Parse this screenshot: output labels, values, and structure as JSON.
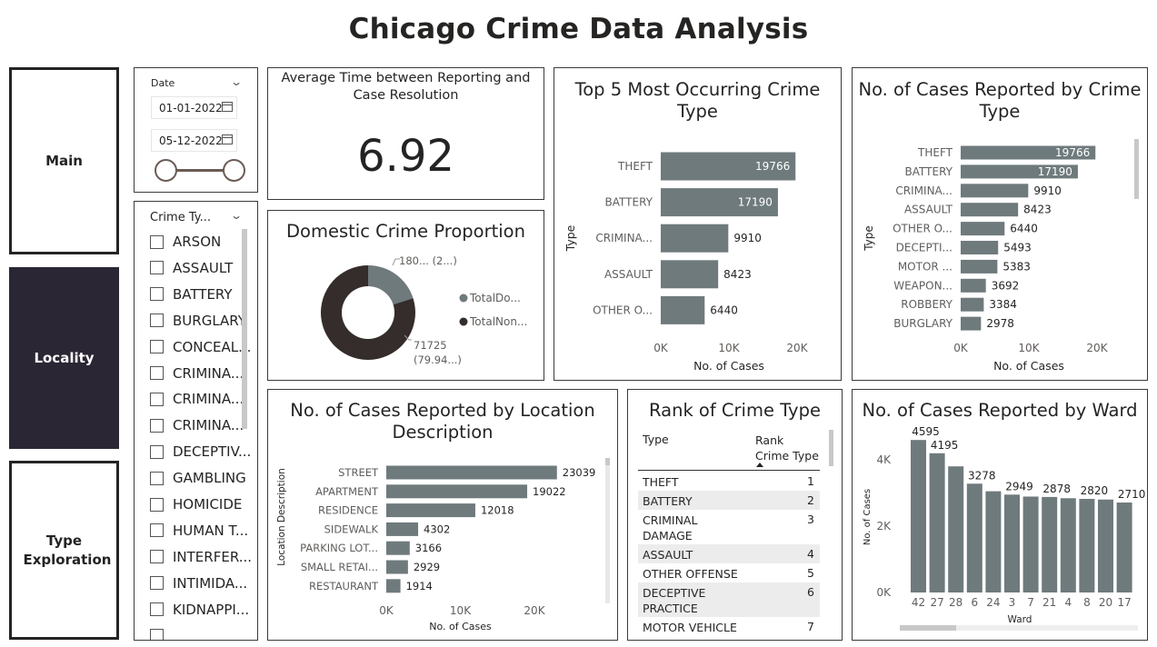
{
  "title": "Chicago Crime Data Analysis",
  "nav": [
    {
      "label": "Main",
      "active": false
    },
    {
      "label": "Locality",
      "active": true
    },
    {
      "label": "Type Exploration",
      "active": false
    }
  ],
  "date_slicer": {
    "label": "Date",
    "start": "01-01-2022",
    "end": "05-12-2022"
  },
  "type_slicer": {
    "header": "Crime Ty...",
    "items": [
      "ARSON",
      "ASSAULT",
      "BATTERY",
      "BURGLARY",
      "CONCEAL...",
      "CRIMINA...",
      "CRIMINA...",
      "CRIMINA...",
      "DECEPTIV...",
      "GAMBLING",
      "HOMICIDE",
      "HUMAN T...",
      "INTERFER...",
      "INTIMIDA...",
      "KIDNAPPI..."
    ]
  },
  "kpi": {
    "title": "Average Time between Reporting and Case Resolution",
    "value": "6.92"
  },
  "domestic": {
    "title": "Domestic Crime Proportion",
    "legend": [
      "TotalDo...",
      "TotalNon..."
    ],
    "colors": [
      "#6f7a7d",
      "#352d2b"
    ],
    "label_small": "180... (2...)",
    "label_large": "71725",
    "label_large_pct": "(79.94...)",
    "chart_data": {
      "type": "pie",
      "fractions": [
        0.2006,
        0.7994
      ]
    }
  },
  "top5": {
    "title": "Top 5 Most Occurring Crime Type",
    "ylabel": "Type",
    "xlabel": "No. of Cases",
    "chart_data": {
      "type": "bar",
      "categories": [
        "THEFT",
        "BATTERY",
        "CRIMINA...",
        "ASSAULT",
        "OTHER O..."
      ],
      "values": [
        19766,
        17190,
        9910,
        8423,
        6440
      ],
      "value_labels": [
        "19766",
        "17190",
        "9910",
        "8423",
        "6440"
      ],
      "xticks": [
        "0K",
        "10K",
        "20K"
      ],
      "xlim": [
        0,
        20000
      ]
    }
  },
  "bytype": {
    "title": "No. of Cases Reported by Crime Type",
    "ylabel": "Type",
    "xlabel": "No. of Cases",
    "chart_data": {
      "type": "bar",
      "categories": [
        "THEFT",
        "BATTERY",
        "CRIMINA...",
        "ASSAULT",
        "OTHER O...",
        "DECEPTI...",
        "MOTOR ...",
        "WEAPON...",
        "ROBBERY",
        "BURGLARY"
      ],
      "values": [
        19766,
        17190,
        9910,
        8423,
        6440,
        5493,
        5383,
        3692,
        3384,
        2978
      ],
      "value_labels": [
        "19766",
        "17190",
        "9910",
        "8423",
        "6440",
        "5493",
        "5383",
        "3692",
        "3384",
        "2978"
      ],
      "xticks": [
        "0K",
        "10K",
        "20K"
      ],
      "xlim": [
        0,
        20000
      ]
    }
  },
  "location": {
    "title": "No. of Cases Reported by Location Description",
    "ylabel": "Location Description",
    "xlabel": "No. of Cases",
    "chart_data": {
      "type": "bar",
      "categories": [
        "STREET",
        "APARTMENT",
        "RESIDENCE",
        "SIDEWALK",
        "PARKING LOT...",
        "SMALL RETAI...",
        "RESTAURANT"
      ],
      "values": [
        23039,
        19022,
        12018,
        4302,
        3166,
        2929,
        1914
      ],
      "value_labels": [
        "23039",
        "19022",
        "12018",
        "4302",
        "3166",
        "2929",
        "1914"
      ],
      "xticks": [
        "0K",
        "10K",
        "20K"
      ],
      "xlim": [
        0,
        20000
      ]
    }
  },
  "rank": {
    "title": "Rank of Crime Type",
    "col1": "Type",
    "col2": "Rank Crime Type",
    "rows": [
      {
        "type": "THEFT",
        "rank": "1"
      },
      {
        "type": "BATTERY",
        "rank": "2"
      },
      {
        "type": "CRIMINAL DAMAGE",
        "rank": "3"
      },
      {
        "type": "ASSAULT",
        "rank": "4"
      },
      {
        "type": "OTHER OFFENSE",
        "rank": "5"
      },
      {
        "type": "DECEPTIVE PRACTICE",
        "rank": "6"
      },
      {
        "type": "MOTOR VEHICLE",
        "rank": "7"
      }
    ]
  },
  "ward": {
    "title": "No. of Cases Reported by Ward",
    "ylabel": "No. of Cases",
    "xlabel": "Ward",
    "chart_data": {
      "type": "bar",
      "categories": [
        "42",
        "27",
        "28",
        "6",
        "24",
        "3",
        "7",
        "21",
        "4",
        "8",
        "20",
        "17"
      ],
      "values": [
        4595,
        4195,
        3800,
        3278,
        3050,
        2949,
        2890,
        2878,
        2840,
        2820,
        2800,
        2710
      ],
      "value_labels": [
        "4595",
        "4195",
        "",
        "3278",
        "",
        "2949",
        "",
        "2878",
        "",
        "2820",
        "",
        "2710"
      ],
      "yticks": [
        "0K",
        "2K",
        "4K"
      ],
      "ylim": [
        0,
        4600
      ]
    }
  },
  "colors": {
    "bar": "#6f7a7d",
    "nav_active": "#2a2633"
  }
}
